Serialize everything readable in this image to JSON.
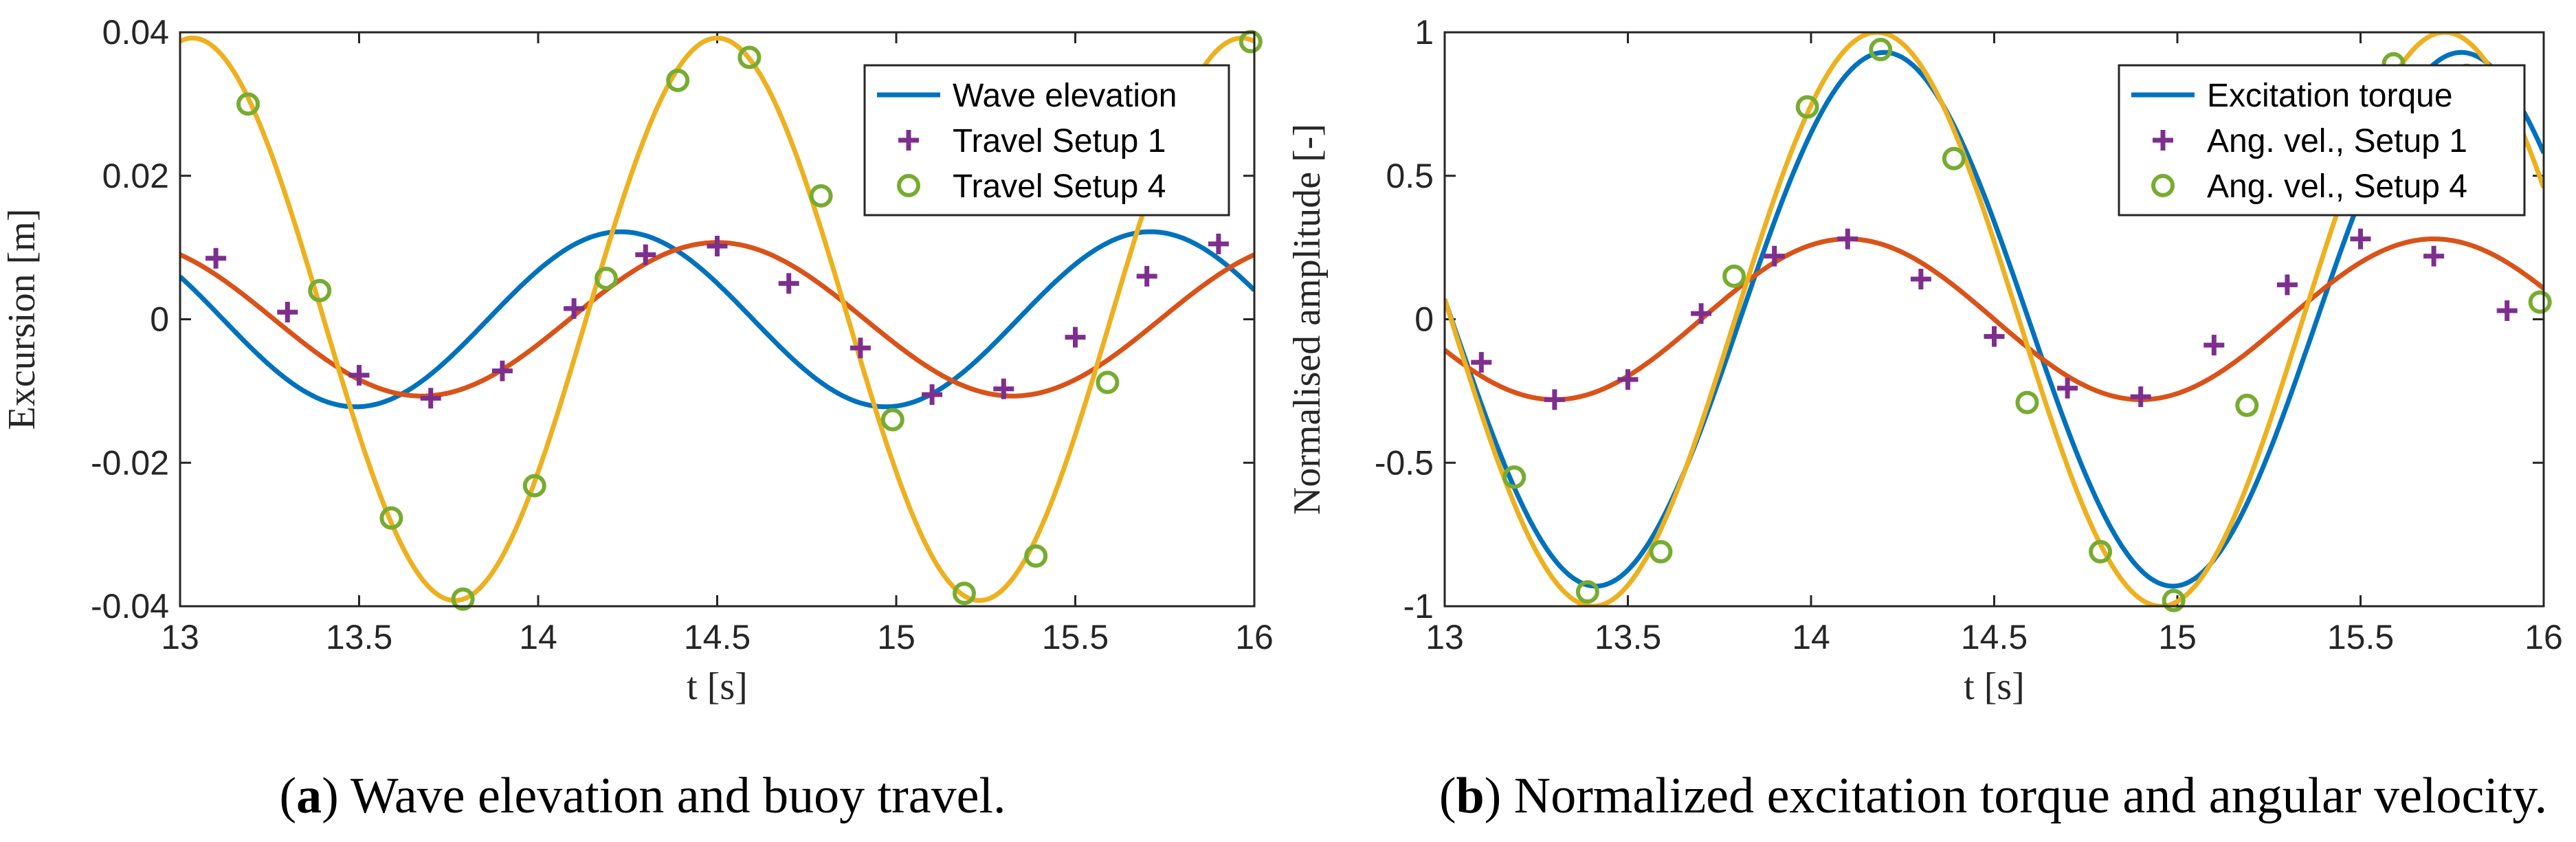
{
  "chart_data": [
    {
      "type": "line",
      "xlabel": "t [s]",
      "ylabel": "Excursion [m]",
      "xlim": [
        13,
        16
      ],
      "ylim": [
        -0.04,
        0.04
      ],
      "xticks": [
        "13",
        "13.5",
        "14",
        "14.5",
        "15",
        "15.5",
        "16"
      ],
      "yticks": [
        "-0.04",
        "-0.02",
        "0",
        "0.02",
        "0.04"
      ],
      "grid": false,
      "legend_position": "top-right",
      "legend": [
        "Wave elevation",
        "Travel Setup 1",
        "Travel Setup 4"
      ],
      "caption_label": "a",
      "caption_text": " Wave elevation and buoy travel.",
      "series": [
        {
          "name": "Wave elevation",
          "kind": "line",
          "color": "#0072BD",
          "amplitude": 0.0122,
          "period": 1.48,
          "phase_time": 14.23
        },
        {
          "kind": "line",
          "color": "#D95319",
          "amplitude": 0.0107,
          "period": 1.65,
          "phase_time": 14.5
        },
        {
          "kind": "line",
          "color": "#EDB120",
          "amplitude": 0.0392,
          "period": 1.465,
          "phase_time": 14.5
        },
        {
          "name": "Travel Setup 1",
          "kind": "marker",
          "marker": "plus",
          "color": "#7E2F8E",
          "x": [
            13.1,
            13.3,
            13.5,
            13.7,
            13.9,
            14.1,
            14.3,
            14.5,
            14.7,
            14.9,
            15.1,
            15.3,
            15.5,
            15.7,
            15.9
          ],
          "y": [
            0.0085,
            0.001,
            -0.0078,
            -0.011,
            -0.0072,
            0.0015,
            0.009,
            0.0102,
            0.005,
            -0.004,
            -0.0105,
            -0.0097,
            -0.0025,
            0.006,
            0.0105
          ]
        },
        {
          "name": "Travel Setup 4",
          "kind": "marker",
          "marker": "circle",
          "color": "#77AC30",
          "x": [
            13.19,
            13.39,
            13.59,
            13.79,
            13.99,
            14.19,
            14.39,
            14.59,
            14.79,
            14.99,
            15.19,
            15.39,
            15.59,
            15.79,
            15.99
          ],
          "y": [
            0.03,
            0.004,
            -0.0277,
            -0.039,
            -0.0232,
            0.0057,
            0.0333,
            0.0365,
            0.0172,
            -0.014,
            -0.0382,
            -0.033,
            -0.0088,
            0.0201,
            0.0387
          ]
        }
      ]
    },
    {
      "type": "line",
      "xlabel": "t [s]",
      "ylabel": "Normalised amplitude [-]",
      "xlim": [
        13,
        16
      ],
      "ylim": [
        -1,
        1
      ],
      "xticks": [
        "13",
        "13.5",
        "14",
        "14.5",
        "15",
        "15.5",
        "16"
      ],
      "yticks": [
        "-1",
        "-0.5",
        "0",
        "0.5",
        "1"
      ],
      "grid": false,
      "legend_position": "top-right",
      "legend": [
        "Excitation torque",
        "Ang. vel., Setup 1",
        "Ang. vel., Setup 4"
      ],
      "caption_label": "b",
      "caption_text": " Normalized excitation torque and angular velocity.",
      "series": [
        {
          "name": "Excitation torque",
          "kind": "line",
          "color": "#0072BD",
          "amplitude": 0.93,
          "period": 1.575,
          "phase_time": 14.2
        },
        {
          "kind": "line",
          "color": "#D95319",
          "amplitude": 0.28,
          "period": 1.6,
          "phase_time": 14.1
        },
        {
          "kind": "line",
          "color": "#EDB120",
          "amplitude": 1.0,
          "period": 1.55,
          "phase_time": 14.18
        },
        {
          "name": "Ang. vel., Setup 1",
          "kind": "marker",
          "marker": "plus",
          "color": "#7E2F8E",
          "x": [
            13.1,
            13.3,
            13.5,
            13.7,
            13.9,
            14.1,
            14.3,
            14.5,
            14.7,
            14.9,
            15.1,
            15.3,
            15.5,
            15.7,
            15.9
          ],
          "y": [
            -0.15,
            -0.28,
            -0.21,
            0.02,
            0.22,
            0.28,
            0.14,
            -0.06,
            -0.24,
            -0.27,
            -0.09,
            0.12,
            0.28,
            0.22,
            0.03
          ]
        },
        {
          "name": "Ang. vel., Setup 4",
          "kind": "marker",
          "marker": "circle",
          "color": "#77AC30",
          "x": [
            13.19,
            13.39,
            13.59,
            13.79,
            13.99,
            14.19,
            14.39,
            14.59,
            14.79,
            14.99,
            15.19,
            15.39,
            15.59,
            15.79,
            15.99
          ],
          "y": [
            -0.55,
            -0.95,
            -0.81,
            0.15,
            0.74,
            0.94,
            0.56,
            -0.29,
            -0.81,
            -0.98,
            -0.3,
            0.62,
            0.89,
            0.85,
            0.06
          ]
        }
      ]
    }
  ]
}
